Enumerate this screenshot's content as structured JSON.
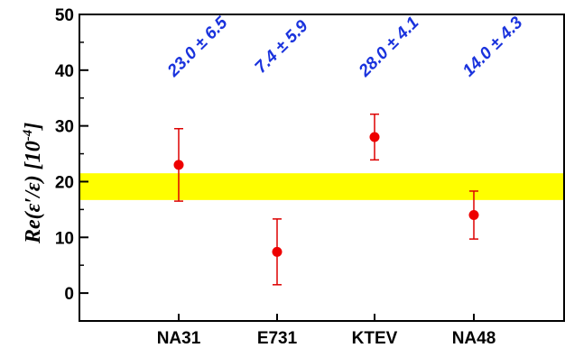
{
  "chart_data": {
    "type": "scatter",
    "ylabel": "Re(ε′/ε) [10",
    "ylabel_exponent": "-4",
    "ylabel_close": "]",
    "ylim": [
      -5,
      50
    ],
    "yticks": [
      0,
      10,
      20,
      30,
      40,
      50
    ],
    "categories": [
      "NA31",
      "E731",
      "KTEV",
      "NA48"
    ],
    "values": [
      23.0,
      7.4,
      28.0,
      14.0
    ],
    "errors": [
      6.5,
      5.9,
      4.1,
      4.3
    ],
    "annotations": [
      "23.0 ± 6.5",
      "7.4 ± 5.9",
      "28.0 ± 4.1",
      "14.0 ± 4.3"
    ],
    "band": {
      "low": 16.7,
      "high": 21.5
    },
    "colors": {
      "points": "#ee0000",
      "errorbars": "#dd0000",
      "annotations": "#1a33dd",
      "band": "#ffff00",
      "axes": "#000000"
    }
  }
}
